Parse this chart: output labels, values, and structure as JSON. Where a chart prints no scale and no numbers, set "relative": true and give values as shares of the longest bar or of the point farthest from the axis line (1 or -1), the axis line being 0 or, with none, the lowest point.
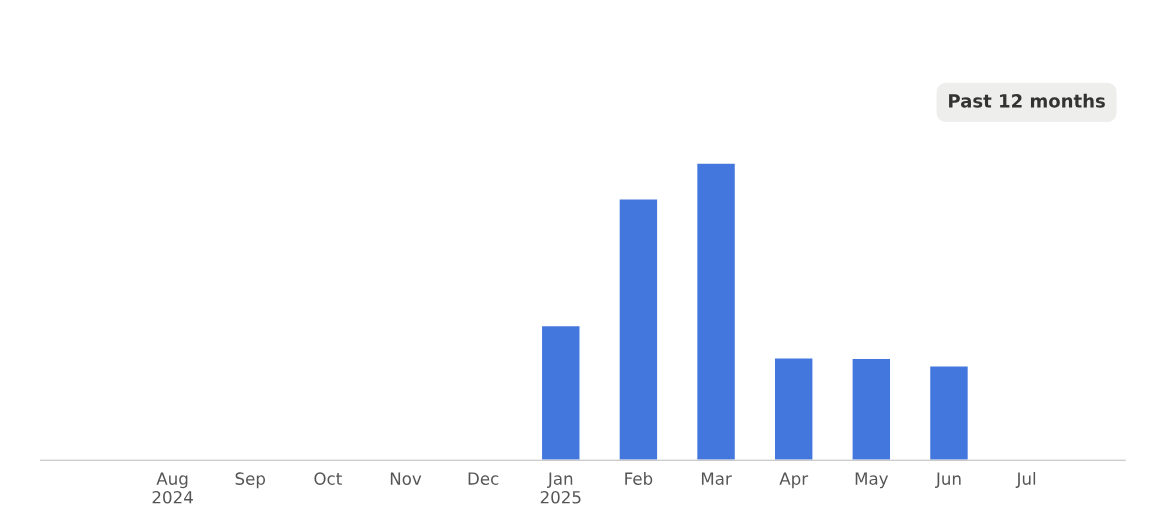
{
  "chart_data": {
    "type": "bar",
    "relative": true,
    "categories": [
      "Aug\n2024",
      "Sep",
      "Oct",
      "Nov",
      "Dec",
      "Jan\n2025",
      "Feb",
      "Mar",
      "Apr",
      "May",
      "Jun",
      "Jul"
    ],
    "values": [
      null,
      null,
      null,
      null,
      null,
      0.453,
      0.88,
      1,
      0.345,
      0.343,
      0.318,
      null
    ],
    "color": "#4477dd",
    "annotations": [
      "Past 12 months"
    ]
  }
}
